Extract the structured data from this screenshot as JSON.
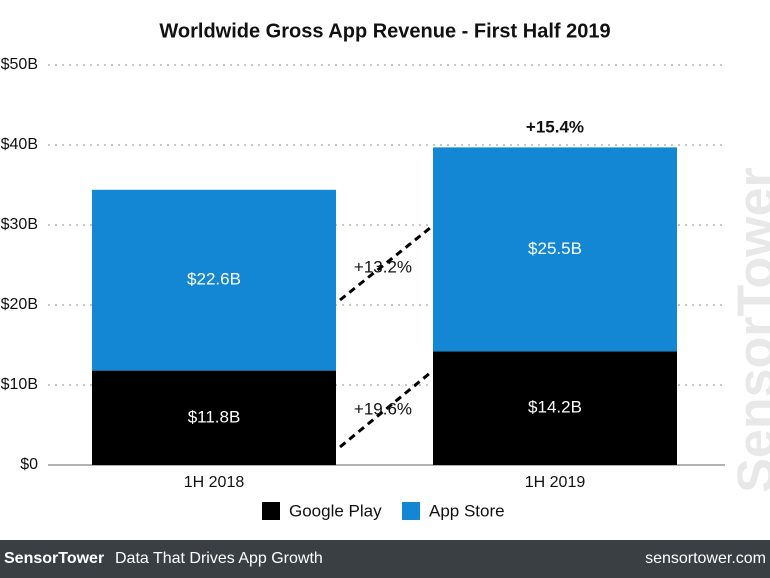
{
  "chart_data": {
    "type": "stacked_bar",
    "title": "Worldwide Gross App Revenue - First Half 2019",
    "categories": [
      "1H 2018",
      "1H 2019"
    ],
    "series": [
      {
        "name": "Google Play",
        "color": "#000000",
        "values": [
          11.8,
          14.2
        ],
        "value_labels": [
          "$11.8B",
          "$14.2B"
        ]
      },
      {
        "name": "App Store",
        "color": "#1487d4",
        "values": [
          22.6,
          25.5
        ],
        "value_labels": [
          "$22.6B",
          "$25.5B"
        ]
      }
    ],
    "ylim": [
      0,
      50
    ],
    "yticks": [
      {
        "value": 0,
        "label": "$0"
      },
      {
        "value": 10,
        "label": "$10B"
      },
      {
        "value": 20,
        "label": "$20B"
      },
      {
        "value": 30,
        "label": "$30B"
      },
      {
        "value": 40,
        "label": "$40B"
      },
      {
        "value": 50,
        "label": "$50B"
      }
    ],
    "grid": true,
    "legend": "bottom",
    "annotations": [
      "+15.4%",
      "+13.2%",
      "+19.6%"
    ],
    "watermark": "SensorTower"
  },
  "footer": {
    "brand": "SensorTower",
    "tagline": "Data That Drives App Growth",
    "url": "sensortower.com"
  }
}
